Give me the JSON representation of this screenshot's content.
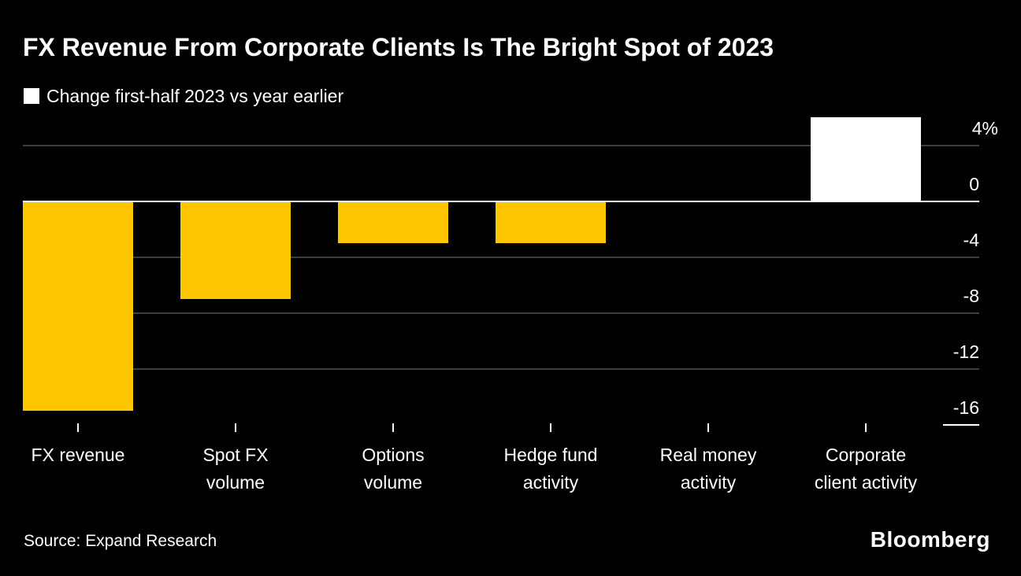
{
  "header": {
    "title": "FX Revenue From Corporate Clients Is The Bright Spot of 2023"
  },
  "legend": {
    "label": "Change first-half 2023 vs year earlier",
    "swatch_color": "#ffffff"
  },
  "chart_data": {
    "type": "bar",
    "title": "FX Revenue From Corporate Clients Is The Bright Spot of 2023",
    "series_label": "Change first-half 2023 vs year earlier",
    "unit": "%",
    "categories": [
      "FX revenue",
      "Spot FX volume",
      "Options volume",
      "Hedge fund activity",
      "Real money activity",
      "Corporate client activity"
    ],
    "category_lines": [
      [
        "FX revenue"
      ],
      [
        "Spot FX",
        "volume"
      ],
      [
        "Options",
        "volume"
      ],
      [
        "Hedge fund",
        "activity"
      ],
      [
        "Real money",
        "activity"
      ],
      [
        "Corporate",
        "client activity"
      ]
    ],
    "values": [
      -15,
      -7,
      -3,
      -3,
      0,
      6
    ],
    "bar_colors": [
      "#fec502",
      "#fec502",
      "#fec502",
      "#fec502",
      "#fec502",
      "#ffffff"
    ],
    "ylim": [
      -16,
      6
    ],
    "yticks": [
      {
        "value": 4,
        "label": "4%"
      },
      {
        "value": 0,
        "label": "0"
      },
      {
        "value": -4,
        "label": "-4"
      },
      {
        "value": -8,
        "label": "-8"
      },
      {
        "value": -12,
        "label": "-12"
      },
      {
        "value": -16,
        "label": "-16"
      }
    ],
    "grid": true,
    "grid_color": "#3f3f3f",
    "zero_line_color": "#ffffff",
    "background_color": "#000000",
    "legend_position": "top-left",
    "value_axis_side": "right"
  },
  "footer": {
    "source": "Source: Expand Research",
    "brand": "Bloomberg"
  }
}
